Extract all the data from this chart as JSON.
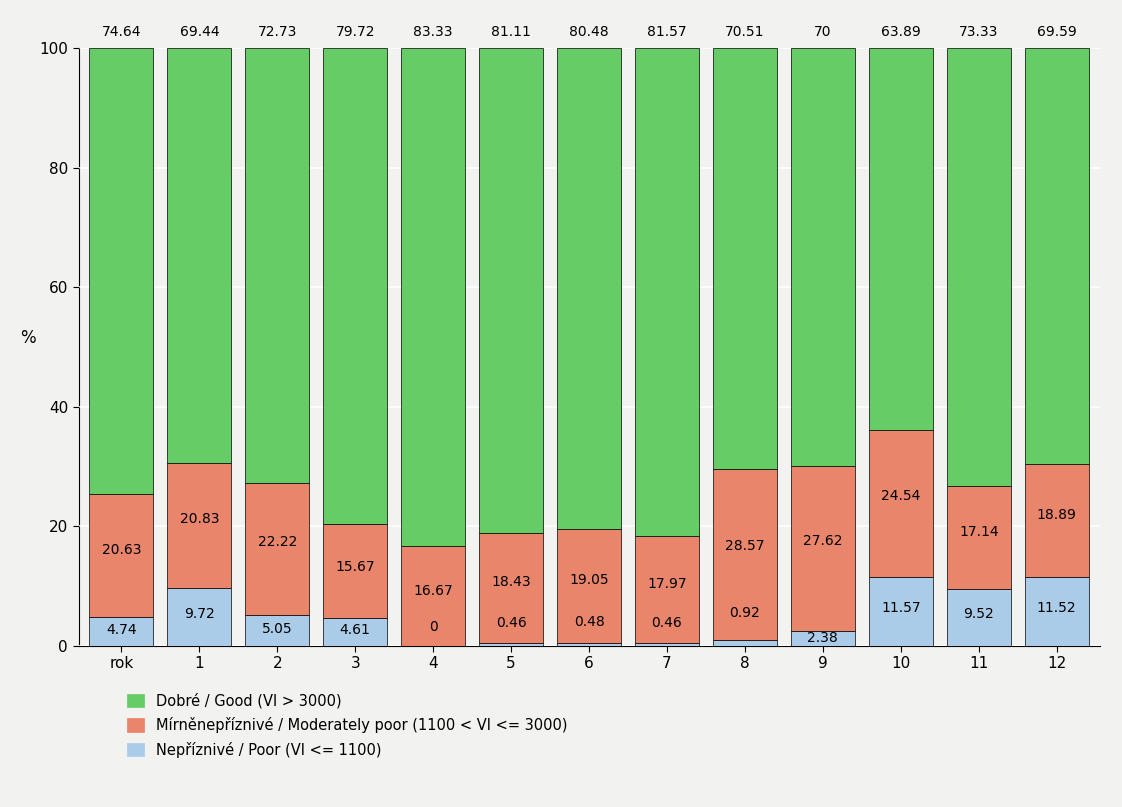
{
  "categories": [
    "rok",
    "1",
    "2",
    "3",
    "4",
    "5",
    "6",
    "7",
    "8",
    "9",
    "10",
    "11",
    "12"
  ],
  "poor": [
    4.74,
    9.72,
    5.05,
    4.61,
    0,
    0.46,
    0.48,
    0.46,
    0.92,
    2.38,
    11.57,
    9.52,
    11.52
  ],
  "moderate": [
    20.63,
    20.83,
    22.22,
    15.67,
    16.67,
    18.43,
    19.05,
    17.97,
    28.57,
    27.62,
    24.54,
    17.14,
    18.89
  ],
  "good": [
    74.64,
    69.44,
    72.73,
    79.72,
    83.33,
    81.11,
    80.48,
    81.57,
    70.51,
    70.0,
    63.89,
    73.33,
    69.59
  ],
  "top_labels": [
    "74.64",
    "69.44",
    "72.73",
    "79.72",
    "83.33",
    "81.11",
    "80.48",
    "81.57",
    "70.51",
    "70",
    "63.89",
    "73.33",
    "69.59"
  ],
  "poor_labels": [
    "4.74",
    "9.72",
    "5.05",
    "4.61",
    "0",
    "0.46",
    "0.48",
    "0.46",
    "0.92",
    "2.38",
    "11.57",
    "9.52",
    "11.52"
  ],
  "moderate_labels": [
    "20.63",
    "20.83",
    "22.22",
    "15.67",
    "16.67",
    "18.43",
    "19.05",
    "17.97",
    "28.57",
    "27.62",
    "24.54",
    "17.14",
    "18.89"
  ],
  "color_poor": "#aacce8",
  "color_moderate": "#e8856a",
  "color_good": "#66cc66",
  "ylabel": "%",
  "ylim": [
    0,
    100
  ],
  "yticks": [
    0,
    20,
    40,
    60,
    80,
    100
  ],
  "legend_good": "Dobré / Good (VI > 3000)",
  "legend_moderate": "Mírněnepříznivé / Moderately poor (1100 < VI <= 3000)",
  "legend_poor": "Nepříznivé / Poor (VI <= 1100)",
  "background_color": "#f2f2f0",
  "bar_width": 0.82
}
